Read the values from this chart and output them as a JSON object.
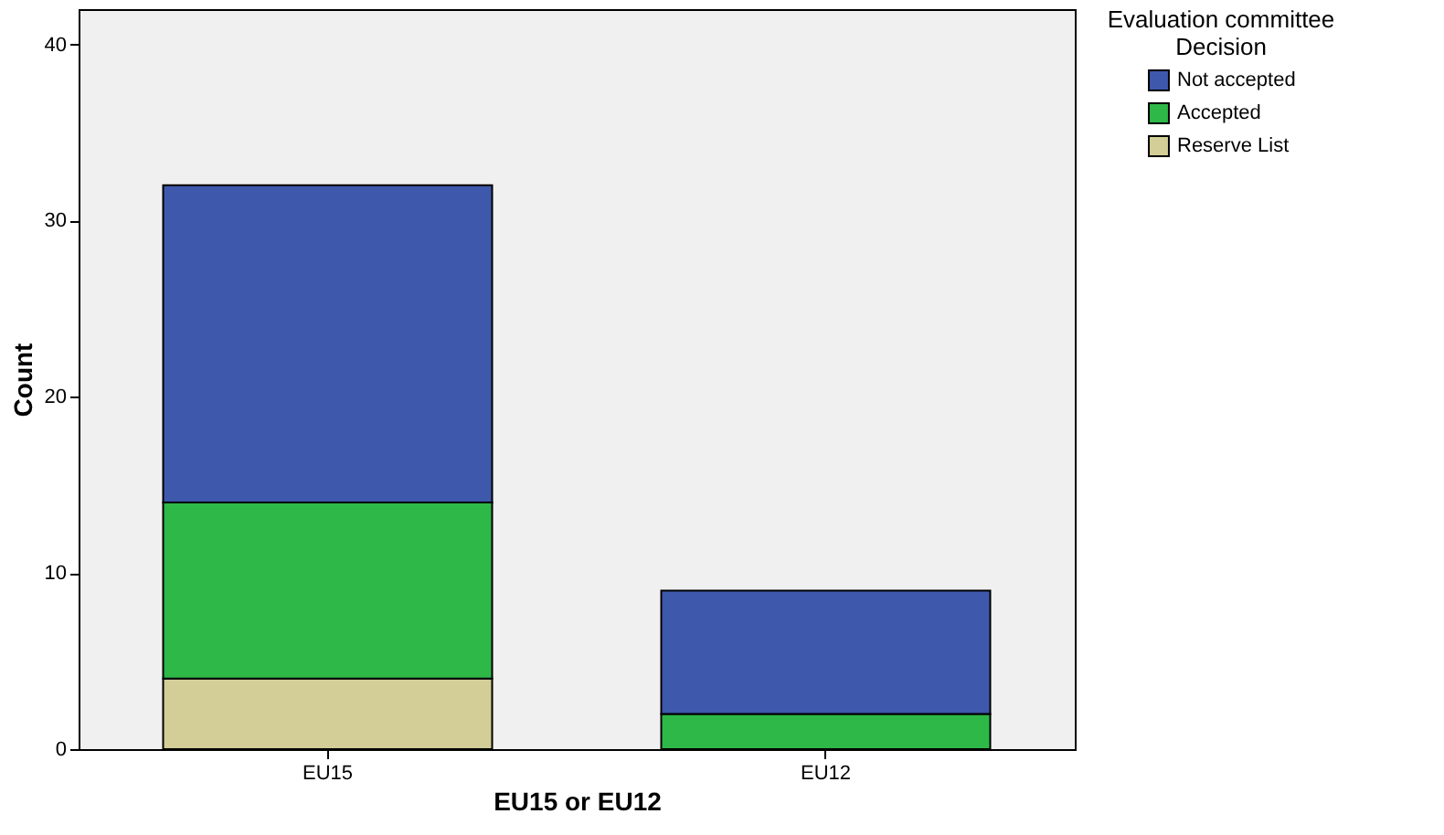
{
  "chart_data": {
    "type": "bar",
    "stacked": true,
    "xlabel": "EU15 or EU12",
    "ylabel": "Count",
    "legend_title": "Evaluation committee\nDecision",
    "categories": [
      "EU15",
      "EU12"
    ],
    "series": [
      {
        "name": "Reserve List",
        "color": "#d3ce97",
        "values": [
          4,
          0
        ]
      },
      {
        "name": "Accepted",
        "color": "#2eb848",
        "values": [
          10,
          2
        ]
      },
      {
        "name": "Not accepted",
        "color": "#3e58ac",
        "values": [
          18,
          7
        ]
      }
    ],
    "ylim": [
      0,
      42
    ],
    "yticks": [
      0,
      10,
      20,
      30,
      40
    ],
    "grid": false,
    "legend": "top right"
  }
}
